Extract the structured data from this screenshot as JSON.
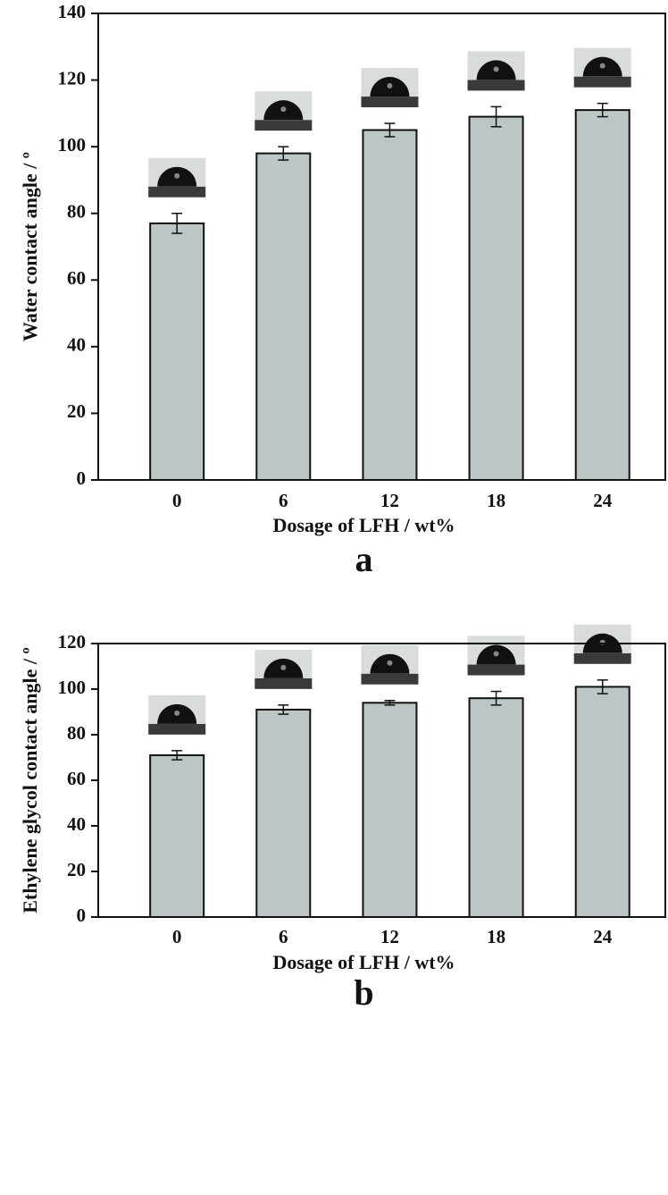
{
  "chart_data": [
    {
      "type": "bar",
      "categories": [
        "0",
        "6",
        "12",
        "18",
        "24"
      ],
      "values": [
        77,
        98,
        105,
        109,
        111
      ],
      "errors": [
        3,
        2,
        2,
        3,
        2
      ],
      "color": "#bcc6c6",
      "ylim": [
        0,
        140
      ],
      "yticks": [
        0,
        20,
        40,
        60,
        80,
        100,
        120,
        140
      ],
      "x_label": "Dosage of LFH / wt%",
      "y_label": "Water contact angle / º",
      "panel_label": "a"
    },
    {
      "type": "bar",
      "categories": [
        "0",
        "6",
        "12",
        "18",
        "24"
      ],
      "values": [
        71,
        91,
        94,
        96,
        101
      ],
      "errors": [
        2,
        2,
        1,
        3,
        3
      ],
      "color": "#bcc6c6",
      "ylim": [
        0,
        120
      ],
      "yticks": [
        0,
        20,
        40,
        60,
        80,
        100,
        120
      ],
      "x_label": "Dosage of LFH / wt%",
      "y_label": "Ethylene glycol contact angle / º",
      "panel_label": "b"
    }
  ]
}
